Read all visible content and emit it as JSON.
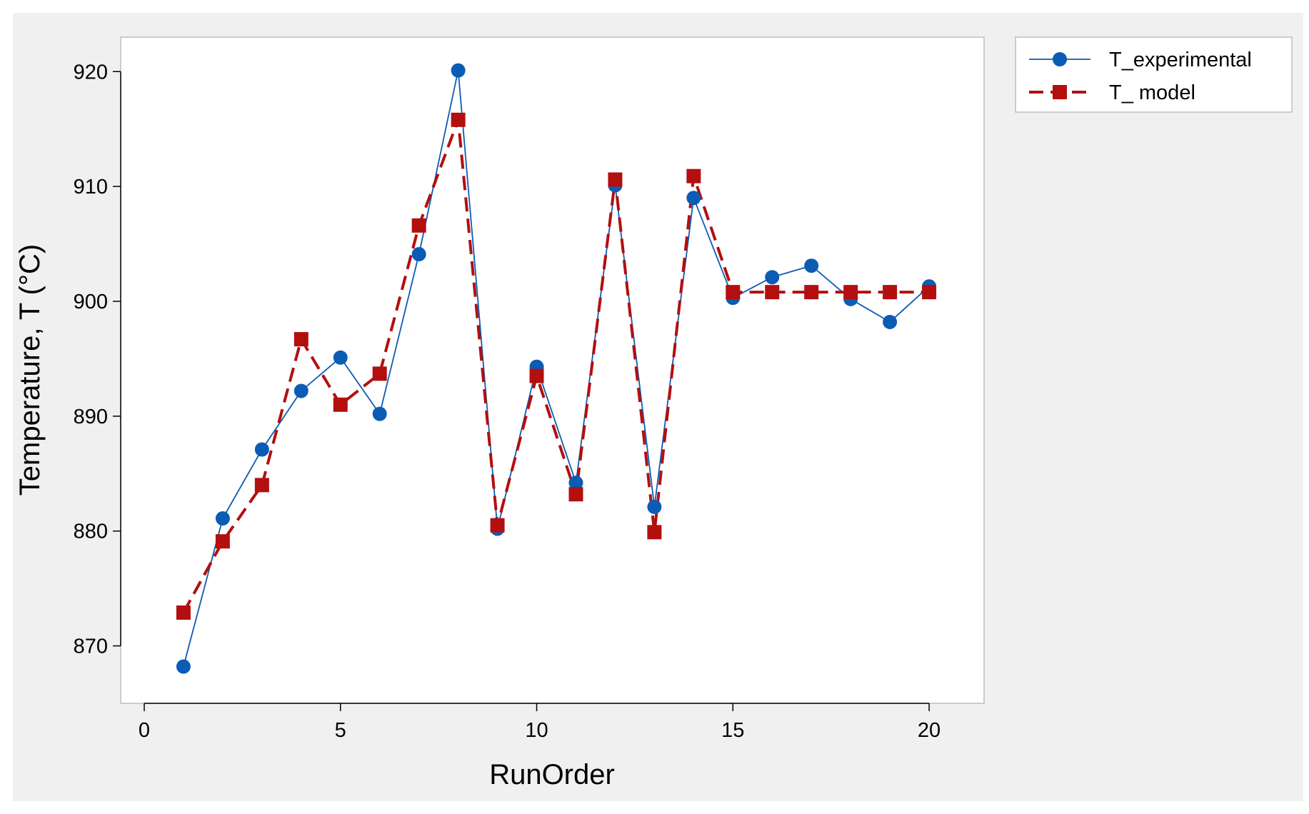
{
  "chart_data": {
    "type": "line",
    "title": "",
    "xlabel": "RunOrder",
    "ylabel": "Temperature, T (°C)",
    "xlim": [
      -0.6,
      21.4
    ],
    "ylim": [
      865,
      923
    ],
    "xticks": [
      0,
      5,
      10,
      15,
      20
    ],
    "yticks": [
      870,
      880,
      890,
      900,
      910,
      920
    ],
    "grid": false,
    "legend_position": "top-right-outside",
    "x": [
      1,
      2,
      3,
      4,
      5,
      6,
      7,
      8,
      9,
      10,
      11,
      12,
      13,
      14,
      15,
      16,
      17,
      18,
      19,
      20
    ],
    "series": [
      {
        "name": "T_experimental",
        "color": "#0b5cb5",
        "marker": "circle",
        "line_style": "solid",
        "values": [
          868.2,
          881.1,
          887.1,
          892.2,
          895.1,
          890.2,
          904.1,
          920.1,
          880.2,
          894.3,
          884.2,
          910.1,
          882.1,
          909.0,
          900.3,
          902.1,
          903.1,
          900.2,
          898.2,
          901.3
        ]
      },
      {
        "name": "T_ model",
        "color": "#b30f0f",
        "marker": "square",
        "line_style": "dashed",
        "values": [
          872.9,
          879.1,
          884.0,
          896.7,
          891.0,
          893.7,
          906.6,
          915.8,
          880.5,
          893.5,
          883.2,
          910.6,
          879.9,
          910.9,
          900.8,
          900.8,
          900.8,
          900.8,
          900.8,
          900.8
        ]
      }
    ]
  },
  "colors": {
    "outer_background": "#f0f0f0",
    "plot_background": "#ffffff",
    "frame": "#bdbdbd"
  }
}
